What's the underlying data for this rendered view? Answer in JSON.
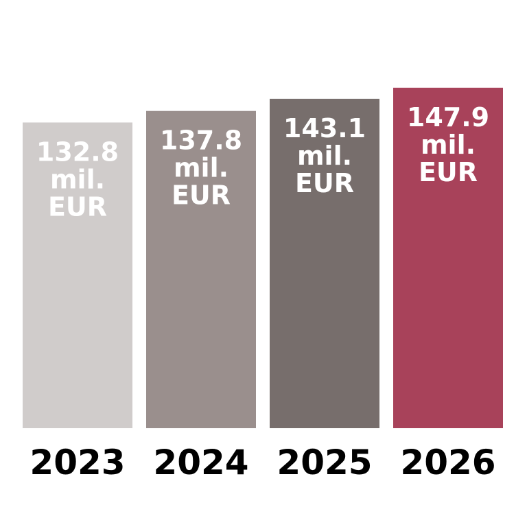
{
  "chart_data": {
    "type": "bar",
    "title": "",
    "xlabel": "",
    "ylabel": "",
    "categories": [
      "2023",
      "2024",
      "2025",
      "2026"
    ],
    "values": [
      132.8,
      137.8,
      143.1,
      147.9
    ],
    "data_labels": [
      [
        "132.8",
        "mil.",
        "EUR"
      ],
      [
        "137.8",
        "mil.",
        "EUR"
      ],
      [
        "143.1",
        "mil.",
        "EUR"
      ],
      [
        "147.9",
        "mil.",
        "EUR"
      ]
    ],
    "colors": [
      "#d0cccb",
      "#9a8f8d",
      "#776e6c",
      "#a8425a"
    ],
    "ylim": [
      0,
      186
    ],
    "grid": false,
    "legend": "none"
  }
}
